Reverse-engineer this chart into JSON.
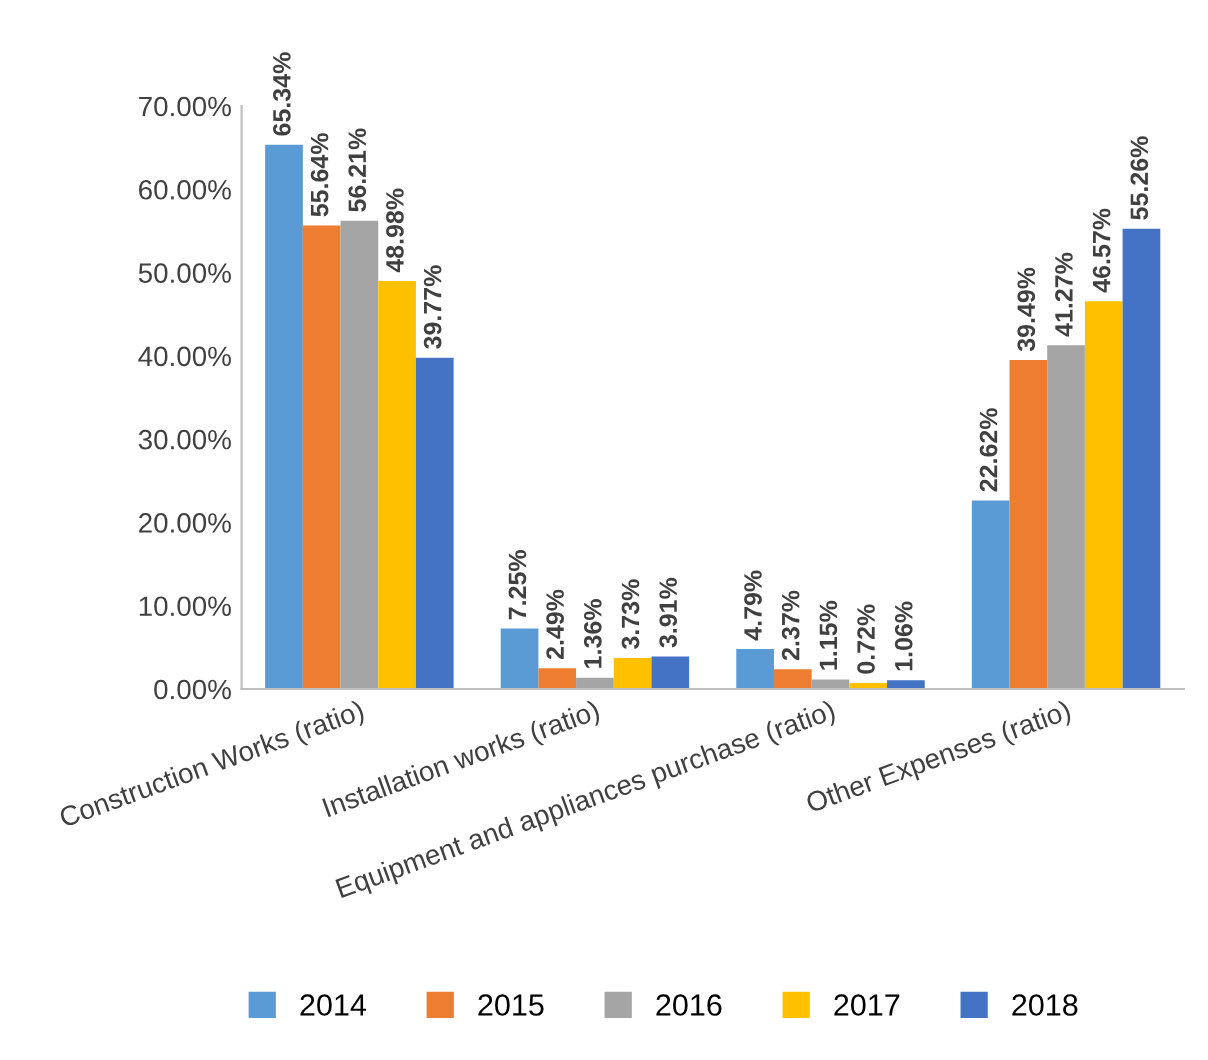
{
  "chart_data": {
    "type": "bar",
    "categories": [
      "Construction Works (ratio)",
      "Installation works (ratio)",
      "Equipment and appliances purchase (ratio)",
      "Other Expenses (ratio)"
    ],
    "series": [
      {
        "name": "2014",
        "color": "#5b9bd5",
        "values": [
          65.34,
          7.25,
          4.79,
          22.62
        ],
        "value_labels": [
          "65.34%",
          "7.25%",
          "4.79%",
          "22.62%"
        ]
      },
      {
        "name": "2015",
        "color": "#ed7d31",
        "values": [
          55.64,
          2.49,
          2.37,
          39.49
        ],
        "value_labels": [
          "55.64%",
          "2.49%",
          "2.37%",
          "39.49%"
        ]
      },
      {
        "name": "2016",
        "color": "#a5a5a5",
        "values": [
          56.21,
          1.36,
          1.15,
          41.27
        ],
        "value_labels": [
          "56.21%",
          "1.36%",
          "1.15%",
          "41.27%"
        ]
      },
      {
        "name": "2017",
        "color": "#ffc000",
        "values": [
          48.98,
          3.73,
          0.72,
          46.57
        ],
        "value_labels": [
          "48.98%",
          "3.73%",
          "0.72%",
          "46.57%"
        ]
      },
      {
        "name": "2018",
        "color": "#4472c4",
        "values": [
          39.77,
          3.91,
          1.06,
          55.26
        ],
        "value_labels": [
          "39.77%",
          "3.91%",
          "1.06%",
          "55.26%"
        ]
      }
    ],
    "ylim": [
      0,
      70
    ],
    "yticks": [
      {
        "value": 0,
        "label": "0.00%"
      },
      {
        "value": 10,
        "label": "10.00%"
      },
      {
        "value": 20,
        "label": "20.00%"
      },
      {
        "value": 30,
        "label": "30.00%"
      },
      {
        "value": 40,
        "label": "40.00%"
      },
      {
        "value": 50,
        "label": "50.00%"
      },
      {
        "value": 60,
        "label": "60.00%"
      },
      {
        "value": 70,
        "label": "70.00%"
      }
    ],
    "grid": false,
    "legend": "bottom"
  }
}
